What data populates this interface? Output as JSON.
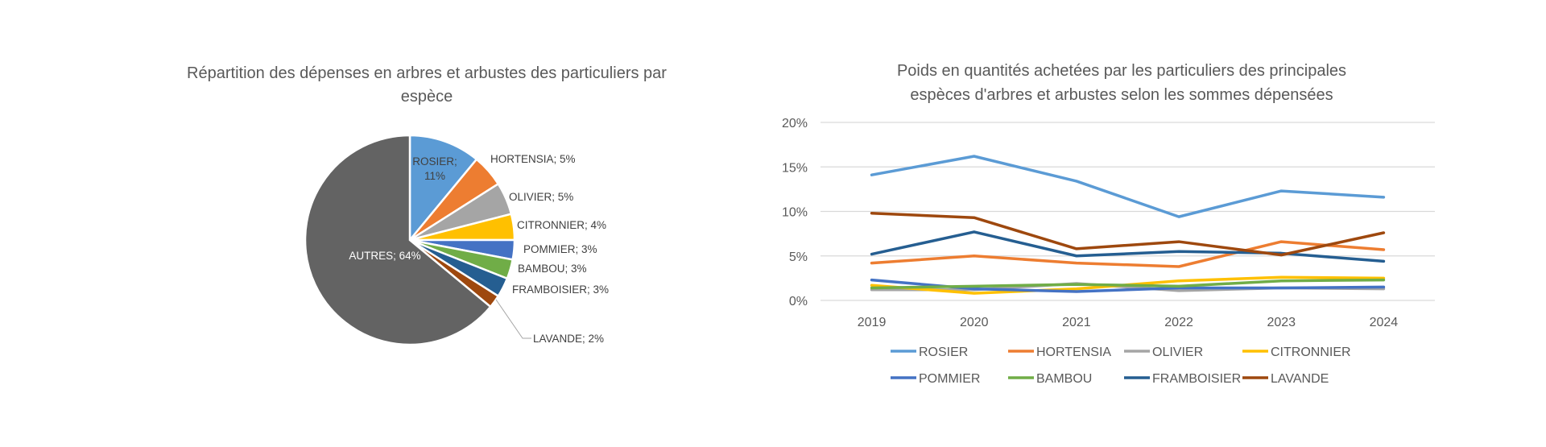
{
  "colors": {
    "ROSIER": "#5B9BD5",
    "HORTENSIA": "#ED7D31",
    "OLIVIER": "#A5A5A5",
    "CITRONNIER": "#FFC000",
    "POMMIER": "#4472C4",
    "BAMBOU": "#70AD47",
    "FRAMBOISIER": "#255E91",
    "LAVANDE": "#9E480E",
    "AUTRES": "#636363"
  },
  "chart_data": [
    {
      "type": "pie",
      "title": "Répartition des dépenses en arbres et arbustes des particuliers par espèce",
      "title_lines": [
        "Répartition des dépenses en arbres et arbustes des particuliers par",
        "espèce"
      ],
      "categories": [
        "ROSIER",
        "HORTENSIA",
        "OLIVIER",
        "CITRONNIER",
        "POMMIER",
        "BAMBOU",
        "FRAMBOISIER",
        "LAVANDE",
        "AUTRES"
      ],
      "values": [
        11,
        5,
        5,
        4,
        3,
        3,
        3,
        2,
        64
      ],
      "labels": [
        "ROSIER; 11%",
        "HORTENSIA; 5%",
        "OLIVIER; 5%",
        "CITRONNIER; 4%",
        "POMMIER; 3%",
        "BAMBOU; 3%",
        "FRAMBOISIER; 3%",
        "LAVANDE; 2%",
        "AUTRES; 64%"
      ],
      "rosier_label_lines": [
        "ROSIER;",
        "11%"
      ],
      "unit": "%"
    },
    {
      "type": "line",
      "title": "Poids en quantités achetées par les particuliers des principales espèces d'arbres et arbustes selon les sommes dépensées",
      "title_lines": [
        "Poids en quantités achetées par les particuliers des principales",
        "espèces d'arbres et arbustes selon les sommes dépensées"
      ],
      "x": [
        "2019",
        "2020",
        "2021",
        "2022",
        "2023",
        "2024"
      ],
      "ylim": [
        0,
        20
      ],
      "yticks": [
        "0%",
        "5%",
        "10%",
        "15%",
        "20%"
      ],
      "grid": true,
      "legend_position": "bottom",
      "series": [
        {
          "name": "ROSIER",
          "values": [
            14.1,
            16.2,
            13.4,
            9.4,
            12.3,
            11.6
          ]
        },
        {
          "name": "HORTENSIA",
          "values": [
            4.2,
            5.0,
            4.2,
            3.8,
            6.6,
            5.7
          ]
        },
        {
          "name": "OLIVIER",
          "values": [
            1.2,
            1.2,
            1.9,
            1.1,
            1.4,
            1.3
          ]
        },
        {
          "name": "CITRONNIER",
          "values": [
            1.7,
            0.8,
            1.3,
            2.2,
            2.6,
            2.5
          ]
        },
        {
          "name": "POMMIER",
          "values": [
            2.3,
            1.3,
            1.0,
            1.4,
            1.4,
            1.5
          ]
        },
        {
          "name": "BAMBOU",
          "values": [
            1.4,
            1.6,
            1.8,
            1.6,
            2.2,
            2.3
          ]
        },
        {
          "name": "FRAMBOISIER",
          "values": [
            5.2,
            7.7,
            5.0,
            5.5,
            5.3,
            4.4
          ]
        },
        {
          "name": "LAVANDE",
          "values": [
            9.8,
            9.3,
            5.8,
            6.6,
            5.1,
            7.6
          ]
        }
      ]
    }
  ]
}
